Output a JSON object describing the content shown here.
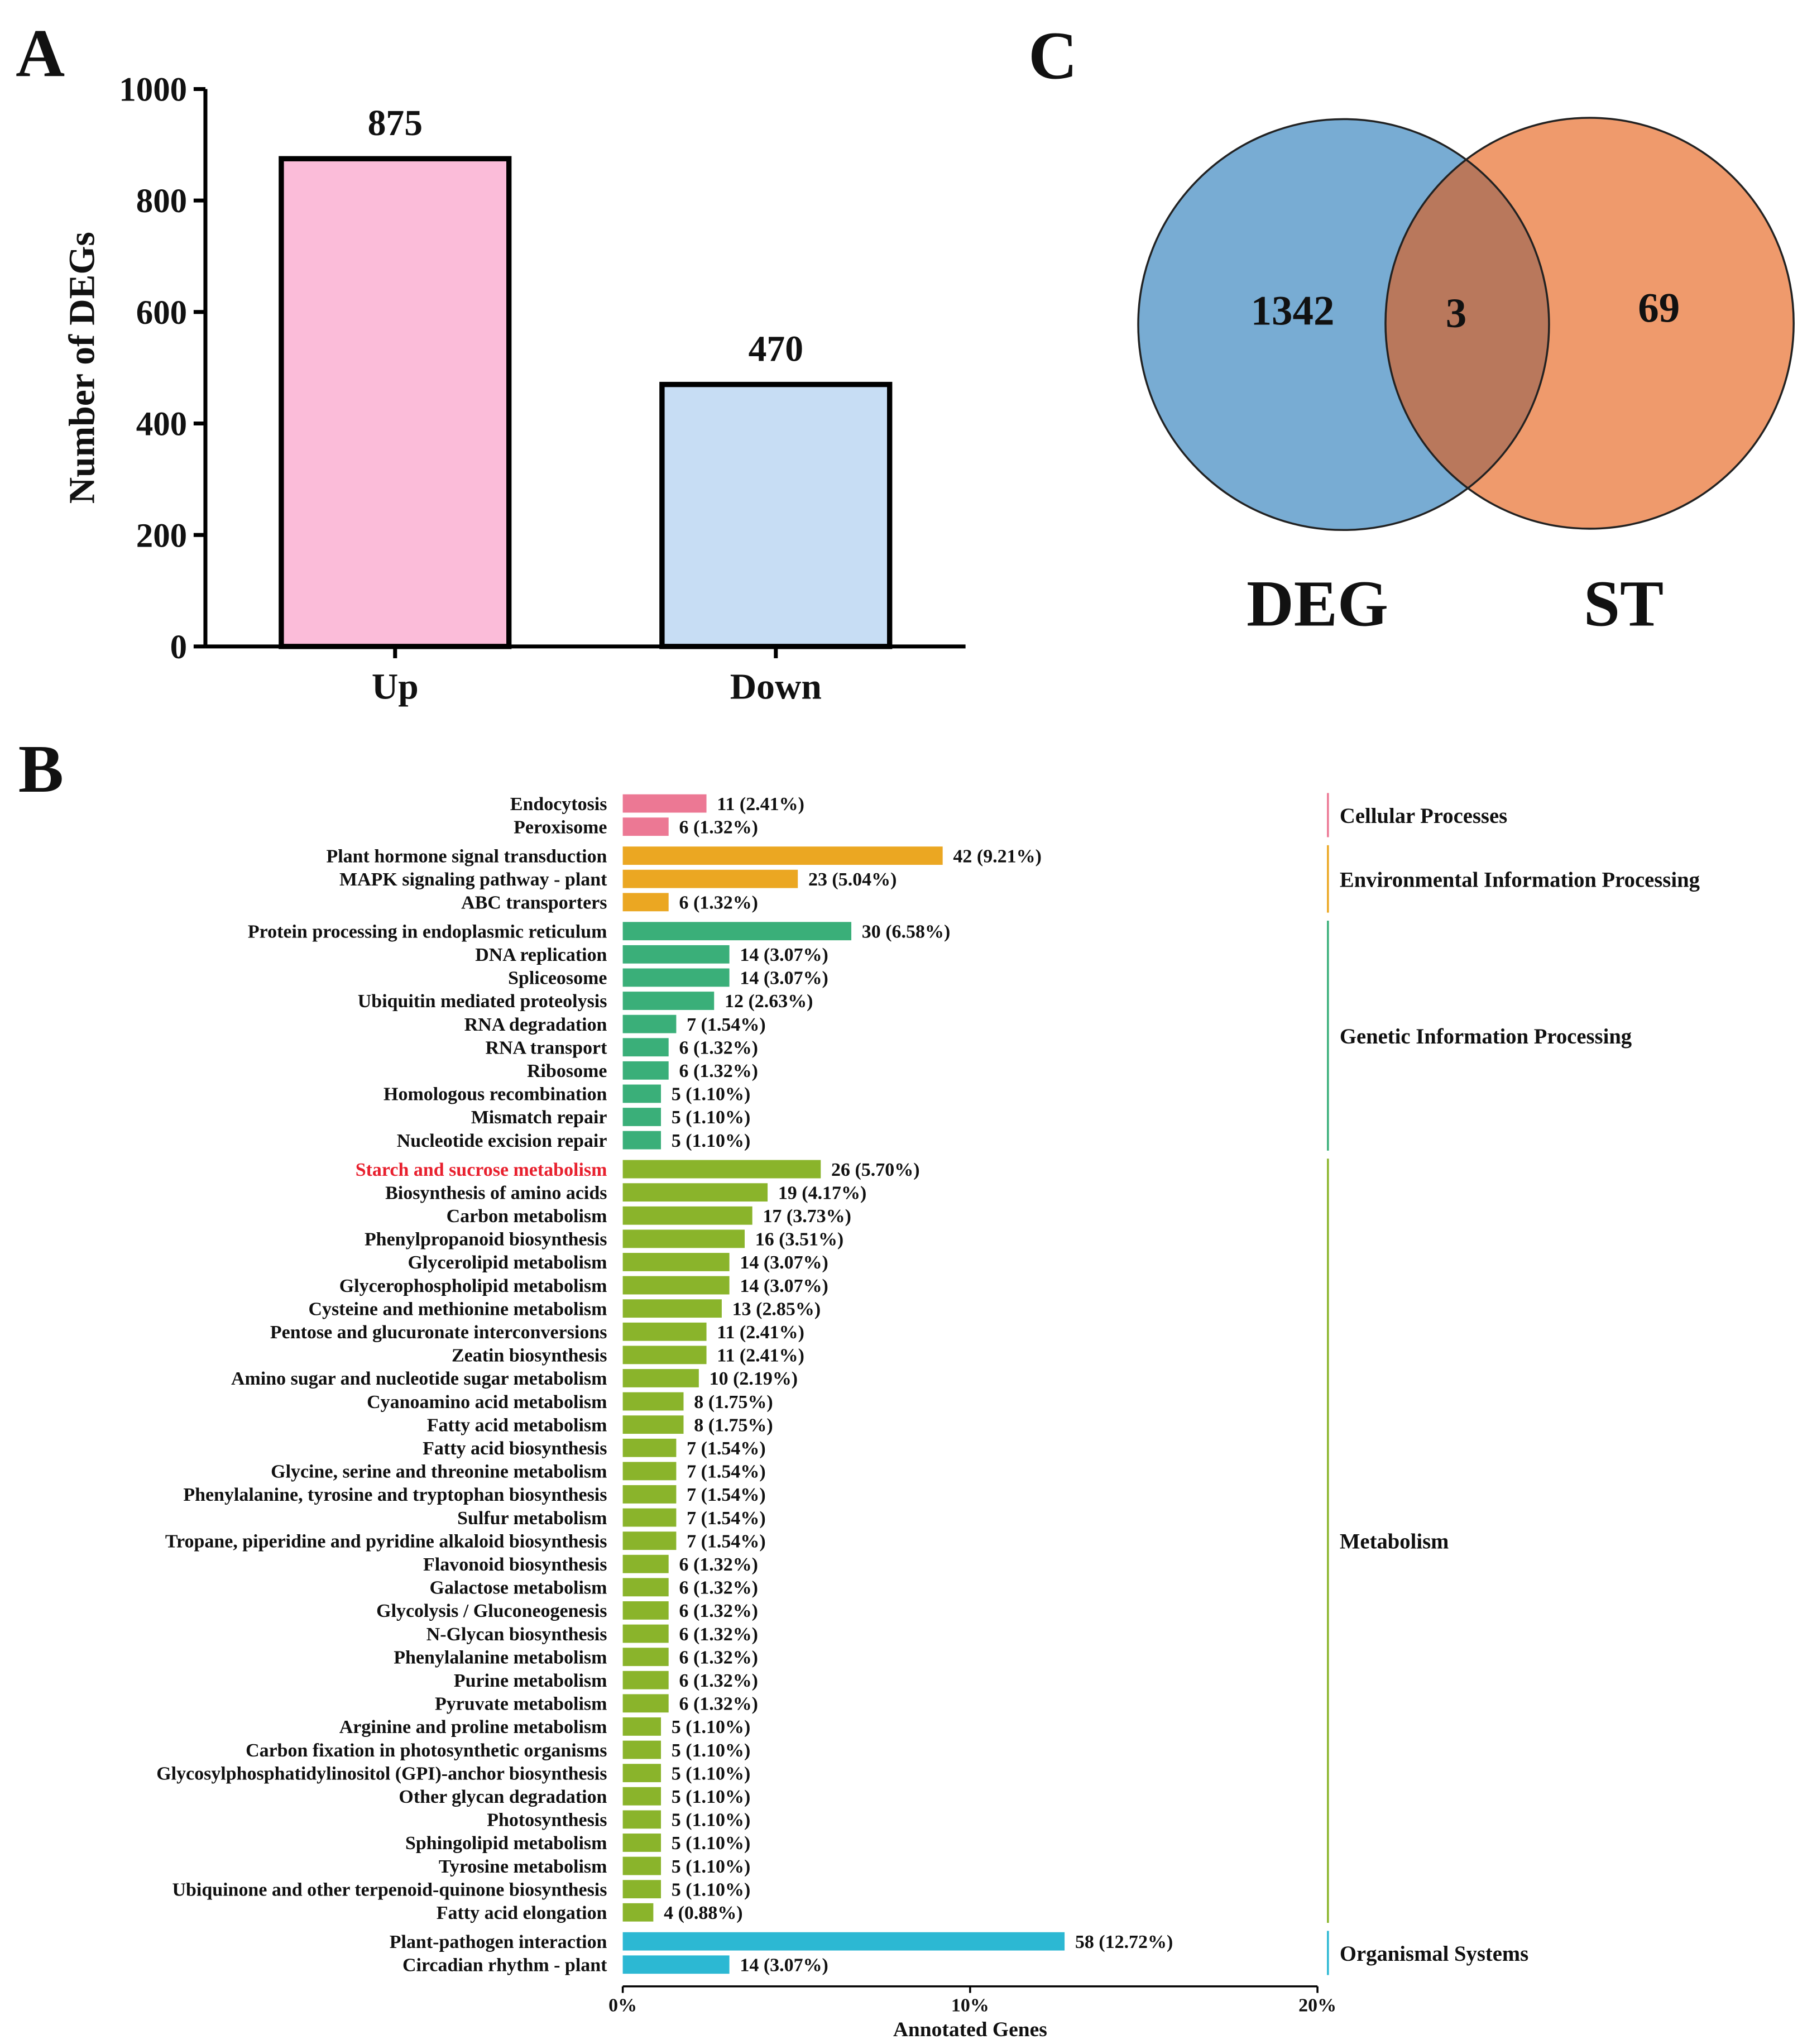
{
  "panel_labels": {
    "a": "A",
    "b": "B",
    "c": "C"
  },
  "chart_data": [
    {
      "type": "bar",
      "panel": "A",
      "title": "",
      "xlabel": "",
      "ylabel": "Number of DEGs",
      "ylim": [
        0,
        1000
      ],
      "yticks": [
        "0",
        "200",
        "400",
        "600",
        "800",
        "1000"
      ],
      "categories": [
        "Up",
        "Down"
      ],
      "values": [
        875,
        470
      ],
      "data_labels": [
        "875",
        "470"
      ],
      "colors": [
        "#fbbcd9",
        "#c7ddf4"
      ]
    },
    {
      "type": "bar",
      "panel": "B",
      "orientation": "horizontal",
      "xlabel": "Annotated Genes",
      "xlim": [
        0,
        20
      ],
      "xticks": [
        "0%",
        "10%",
        "20%"
      ],
      "highlight_color": "#e8202e",
      "groups": [
        {
          "name": "Cellular Processes",
          "color": "#ec7894",
          "items": [
            {
              "label": "Endocytosis",
              "count": 11,
              "pct": 2.41,
              "text": "11 (2.41%)"
            },
            {
              "label": "Peroxisome",
              "count": 6,
              "pct": 1.32,
              "text": "6 (1.32%)"
            }
          ]
        },
        {
          "name": "Environmental Information Processing",
          "color": "#eba722",
          "items": [
            {
              "label": "Plant hormone signal transduction",
              "count": 42,
              "pct": 9.21,
              "text": "42 (9.21%)"
            },
            {
              "label": "MAPK signaling pathway - plant",
              "count": 23,
              "pct": 5.04,
              "text": "23 (5.04%)"
            },
            {
              "label": "ABC transporters",
              "count": 6,
              "pct": 1.32,
              "text": "6 (1.32%)"
            }
          ]
        },
        {
          "name": "Genetic Information Processing",
          "color": "#3aaf79",
          "items": [
            {
              "label": "Protein processing in endoplasmic reticulum",
              "count": 30,
              "pct": 6.58,
              "text": "30 (6.58%)"
            },
            {
              "label": "DNA replication",
              "count": 14,
              "pct": 3.07,
              "text": "14 (3.07%)"
            },
            {
              "label": "Spliceosome",
              "count": 14,
              "pct": 3.07,
              "text": "14 (3.07%)"
            },
            {
              "label": "Ubiquitin mediated proteolysis",
              "count": 12,
              "pct": 2.63,
              "text": "12 (2.63%)"
            },
            {
              "label": "RNA degradation",
              "count": 7,
              "pct": 1.54,
              "text": "7 (1.54%)"
            },
            {
              "label": "RNA transport",
              "count": 6,
              "pct": 1.32,
              "text": "6 (1.32%)"
            },
            {
              "label": "Ribosome",
              "count": 6,
              "pct": 1.32,
              "text": "6 (1.32%)"
            },
            {
              "label": "Homologous recombination",
              "count": 5,
              "pct": 1.1,
              "text": "5 (1.10%)"
            },
            {
              "label": "Mismatch repair",
              "count": 5,
              "pct": 1.1,
              "text": "5 (1.10%)"
            },
            {
              "label": "Nucleotide excision repair",
              "count": 5,
              "pct": 1.1,
              "text": "5 (1.10%)"
            }
          ]
        },
        {
          "name": "Metabolism",
          "color": "#8ab42b",
          "items": [
            {
              "label": "Starch and sucrose metabolism",
              "count": 26,
              "pct": 5.7,
              "text": "26 (5.70%)",
              "highlight": true
            },
            {
              "label": "Biosynthesis of amino acids",
              "count": 19,
              "pct": 4.17,
              "text": "19 (4.17%)"
            },
            {
              "label": "Carbon metabolism",
              "count": 17,
              "pct": 3.73,
              "text": "17 (3.73%)"
            },
            {
              "label": "Phenylpropanoid biosynthesis",
              "count": 16,
              "pct": 3.51,
              "text": "16 (3.51%)"
            },
            {
              "label": "Glycerolipid metabolism",
              "count": 14,
              "pct": 3.07,
              "text": "14 (3.07%)"
            },
            {
              "label": "Glycerophospholipid metabolism",
              "count": 14,
              "pct": 3.07,
              "text": "14 (3.07%)"
            },
            {
              "label": "Cysteine and methionine metabolism",
              "count": 13,
              "pct": 2.85,
              "text": "13 (2.85%)"
            },
            {
              "label": "Pentose and glucuronate interconversions",
              "count": 11,
              "pct": 2.41,
              "text": "11 (2.41%)"
            },
            {
              "label": "Zeatin biosynthesis",
              "count": 11,
              "pct": 2.41,
              "text": "11 (2.41%)"
            },
            {
              "label": "Amino sugar and nucleotide sugar metabolism",
              "count": 10,
              "pct": 2.19,
              "text": "10 (2.19%)"
            },
            {
              "label": "Cyanoamino acid metabolism",
              "count": 8,
              "pct": 1.75,
              "text": "8 (1.75%)"
            },
            {
              "label": "Fatty acid metabolism",
              "count": 8,
              "pct": 1.75,
              "text": "8 (1.75%)"
            },
            {
              "label": "Fatty acid biosynthesis",
              "count": 7,
              "pct": 1.54,
              "text": "7 (1.54%)"
            },
            {
              "label": "Glycine, serine and threonine metabolism",
              "count": 7,
              "pct": 1.54,
              "text": "7 (1.54%)"
            },
            {
              "label": "Phenylalanine, tyrosine and tryptophan biosynthesis",
              "count": 7,
              "pct": 1.54,
              "text": "7 (1.54%)"
            },
            {
              "label": "Sulfur metabolism",
              "count": 7,
              "pct": 1.54,
              "text": "7 (1.54%)"
            },
            {
              "label": "Tropane, piperidine and pyridine alkaloid biosynthesis",
              "count": 7,
              "pct": 1.54,
              "text": "7 (1.54%)"
            },
            {
              "label": "Flavonoid biosynthesis",
              "count": 6,
              "pct": 1.32,
              "text": "6 (1.32%)"
            },
            {
              "label": "Galactose metabolism",
              "count": 6,
              "pct": 1.32,
              "text": "6 (1.32%)"
            },
            {
              "label": "Glycolysis / Gluconeogenesis",
              "count": 6,
              "pct": 1.32,
              "text": "6 (1.32%)"
            },
            {
              "label": "N-Glycan biosynthesis",
              "count": 6,
              "pct": 1.32,
              "text": "6 (1.32%)"
            },
            {
              "label": "Phenylalanine metabolism",
              "count": 6,
              "pct": 1.32,
              "text": "6 (1.32%)"
            },
            {
              "label": "Purine metabolism",
              "count": 6,
              "pct": 1.32,
              "text": "6 (1.32%)"
            },
            {
              "label": "Pyruvate metabolism",
              "count": 6,
              "pct": 1.32,
              "text": "6 (1.32%)"
            },
            {
              "label": "Arginine and proline metabolism",
              "count": 5,
              "pct": 1.1,
              "text": "5 (1.10%)"
            },
            {
              "label": "Carbon fixation in photosynthetic organisms",
              "count": 5,
              "pct": 1.1,
              "text": "5 (1.10%)"
            },
            {
              "label": "Glycosylphosphatidylinositol (GPI)-anchor biosynthesis",
              "count": 5,
              "pct": 1.1,
              "text": "5 (1.10%)"
            },
            {
              "label": "Other glycan degradation",
              "count": 5,
              "pct": 1.1,
              "text": "5 (1.10%)"
            },
            {
              "label": "Photosynthesis",
              "count": 5,
              "pct": 1.1,
              "text": "5 (1.10%)"
            },
            {
              "label": "Sphingolipid metabolism",
              "count": 5,
              "pct": 1.1,
              "text": "5 (1.10%)"
            },
            {
              "label": "Tyrosine metabolism",
              "count": 5,
              "pct": 1.1,
              "text": "5 (1.10%)"
            },
            {
              "label": "Ubiquinone and other terpenoid-quinone biosynthesis",
              "count": 5,
              "pct": 1.1,
              "text": "5 (1.10%)"
            },
            {
              "label": "Fatty acid elongation",
              "count": 4,
              "pct": 0.88,
              "text": "4 (0.88%)"
            }
          ]
        },
        {
          "name": "Organismal Systems",
          "color": "#2cb8d3",
          "items": [
            {
              "label": "Plant-pathogen interaction",
              "count": 58,
              "pct": 12.72,
              "text": "58 (12.72%)"
            },
            {
              "label": "Circadian rhythm - plant",
              "count": 14,
              "pct": 3.07,
              "text": "14 (3.07%)"
            }
          ]
        }
      ]
    },
    {
      "type": "venn",
      "panel": "C",
      "sets": [
        {
          "name": "DEG",
          "only": 1342,
          "color": "#78acd3"
        },
        {
          "name": "ST",
          "only": 69,
          "color": "#ef9a6c"
        }
      ],
      "intersection": 3,
      "intersection_color": "#b9785c"
    }
  ]
}
